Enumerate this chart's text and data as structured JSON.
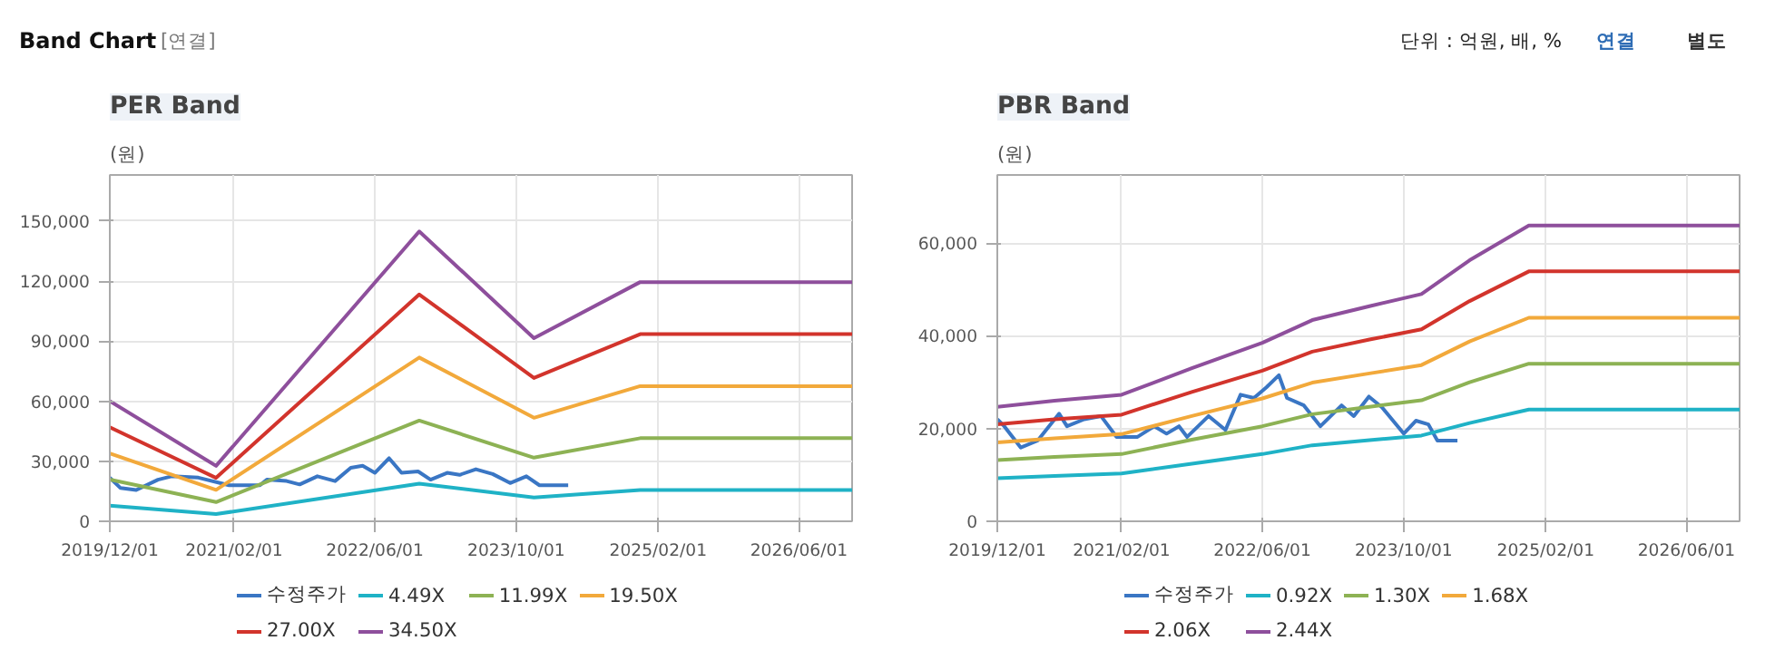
{
  "chart_data": [
    {
      "type": "line",
      "title": "PER Band",
      "ylabel": "(원)",
      "annotations": [
        "Band Chart",
        "[연결]",
        "단위 : 억원, 배, %",
        "연결",
        "별도"
      ],
      "grid": true,
      "legend": "bottom",
      "xlim": [
        "2019-12-01",
        "2026-12-01"
      ],
      "ylim": [
        0,
        173000
      ],
      "xticks": [
        {
          "value": "2019-12-01",
          "label": "2019/12/01"
        },
        {
          "value": "2021-02-01",
          "label": "2021/02/01"
        },
        {
          "value": "2022-06-01",
          "label": "2022/06/01"
        },
        {
          "value": "2023-10-01",
          "label": "2023/10/01"
        },
        {
          "value": "2025-02-01",
          "label": "2025/02/01"
        },
        {
          "value": "2026-06-01",
          "label": "2026/06/01"
        }
      ],
      "yticks": [
        {
          "value": 0,
          "label": "0"
        },
        {
          "value": 30000,
          "label": "30,000"
        },
        {
          "value": 60000,
          "label": "60,000"
        },
        {
          "value": 90000,
          "label": "90,000"
        },
        {
          "value": 120000,
          "label": "120,000"
        },
        {
          "value": 150000,
          "label": "150,000"
        }
      ],
      "x": [
        "2019-12-01",
        "2020-12-01",
        "2022-11-01",
        "2023-12-01",
        "2024-12-01",
        "2026-12-01"
      ],
      "series": [
        {
          "name": "수정주가",
          "color": "#3a76c4",
          "x": [
            "2019-12-01",
            "2020-01-07",
            "2020-03-01",
            "2020-05-15",
            "2020-07-01",
            "2020-10-01",
            "2021-01-15",
            "2021-05-01",
            "2021-05-25",
            "2021-08-01",
            "2021-09-15",
            "2021-11-15",
            "2022-01-15",
            "2022-03-10",
            "2022-04-20",
            "2022-06-01",
            "2022-07-20",
            "2022-09-01",
            "2022-10-28",
            "2022-12-10",
            "2023-02-05",
            "2023-03-20",
            "2023-05-15",
            "2023-07-12",
            "2023-09-10",
            "2023-11-05",
            "2023-12-20",
            "2024-03-28"
          ],
          "values": [
            21800,
            16600,
            15600,
            20800,
            22500,
            21800,
            18000,
            18000,
            20800,
            20100,
            18400,
            22500,
            20100,
            26700,
            27700,
            24200,
            31500,
            24200,
            24900,
            20800,
            24200,
            23200,
            26000,
            23600,
            19100,
            22500,
            18000,
            18000
          ]
        },
        {
          "name": "4.49X",
          "color": "#1fb2c6",
          "values": [
            7800,
            3600,
            18800,
            11900,
            15600,
            15600
          ]
        },
        {
          "name": "11.99X",
          "color": "#8db254",
          "values": [
            20900,
            9600,
            50300,
            31800,
            41500,
            41500
          ]
        },
        {
          "name": "19.50X",
          "color": "#f2a93b",
          "values": [
            33900,
            15700,
            81800,
            51700,
            67500,
            67500
          ]
        },
        {
          "name": "27.00X",
          "color": "#d2342c",
          "values": [
            47000,
            21700,
            113300,
            71600,
            93500,
            93500
          ]
        },
        {
          "name": "34.50X",
          "color": "#8e4f9c",
          "values": [
            60000,
            27700,
            144800,
            91500,
            119500,
            119500
          ]
        }
      ]
    },
    {
      "type": "line",
      "title": "PBR Band",
      "ylabel": "(원)",
      "grid": true,
      "legend": "bottom",
      "xlim": [
        "2019-12-01",
        "2026-12-01"
      ],
      "ylim": [
        0,
        74700
      ],
      "xticks": [
        {
          "value": "2019-12-01",
          "label": "2019/12/01"
        },
        {
          "value": "2021-02-01",
          "label": "2021/02/01"
        },
        {
          "value": "2022-06-01",
          "label": "2022/06/01"
        },
        {
          "value": "2023-10-01",
          "label": "2023/10/01"
        },
        {
          "value": "2025-02-01",
          "label": "2025/02/01"
        },
        {
          "value": "2026-06-01",
          "label": "2026/06/01"
        }
      ],
      "yticks": [
        {
          "value": 0,
          "label": "0"
        },
        {
          "value": 20000,
          "label": "20,000"
        },
        {
          "value": 40000,
          "label": "40,000"
        },
        {
          "value": 60000,
          "label": "60,000"
        }
      ],
      "x": [
        "2019-12-01",
        "2020-06-15",
        "2021-02-01",
        "2021-10-01",
        "2022-06-01",
        "2022-11-20",
        "2023-06-05",
        "2023-12-01",
        "2024-05-15",
        "2024-12-05",
        "2026-12-01"
      ],
      "series": [
        {
          "name": "수정주가",
          "color": "#3a76c4",
          "x": [
            "2019-12-01",
            "2019-12-25",
            "2020-02-20",
            "2020-04-18",
            "2020-07-01",
            "2020-07-28",
            "2020-09-25",
            "2020-11-22",
            "2021-01-15",
            "2021-03-28",
            "2021-05-25",
            "2021-07-06",
            "2021-08-18",
            "2021-09-15",
            "2021-11-28",
            "2022-01-25",
            "2022-03-18",
            "2022-05-03",
            "2022-06-15",
            "2022-07-28",
            "2022-08-25",
            "2022-10-22",
            "2022-12-18",
            "2023-03-01",
            "2023-04-12",
            "2023-06-03",
            "2023-07-18",
            "2023-10-01",
            "2023-11-12",
            "2023-12-25",
            "2024-01-25",
            "2024-04-03"
          ],
          "values": [
            22000,
            20500,
            15900,
            17400,
            23200,
            20500,
            22000,
            22700,
            18200,
            18200,
            20500,
            18900,
            20500,
            18200,
            22700,
            19700,
            27300,
            26600,
            28900,
            31500,
            26600,
            25000,
            20500,
            25000,
            22700,
            26900,
            24600,
            18900,
            21700,
            20900,
            17400,
            17400
          ]
        },
        {
          "name": "0.92X",
          "color": "#1fb2c6",
          "values": [
            9300,
            9800,
            10300,
            12400,
            14500,
            16400,
            17500,
            18500,
            21200,
            24100,
            24100
          ]
        },
        {
          "name": "1.30X",
          "color": "#8db254",
          "values": [
            13200,
            13900,
            14500,
            17600,
            20500,
            23100,
            24700,
            26100,
            30000,
            34000,
            34000
          ]
        },
        {
          "name": "1.68X",
          "color": "#f2a93b",
          "values": [
            17000,
            17900,
            18800,
            22700,
            26500,
            29900,
            31900,
            33700,
            38800,
            43900,
            43900
          ]
        },
        {
          "name": "2.06X",
          "color": "#d2342c",
          "values": [
            20900,
            22000,
            23000,
            27900,
            32500,
            36600,
            39200,
            41400,
            47500,
            53900,
            53900
          ]
        },
        {
          "name": "2.44X",
          "color": "#8e4f9c",
          "values": [
            24700,
            26000,
            27300,
            33000,
            38500,
            43400,
            46400,
            49000,
            56300,
            63800,
            63800
          ]
        }
      ]
    }
  ]
}
